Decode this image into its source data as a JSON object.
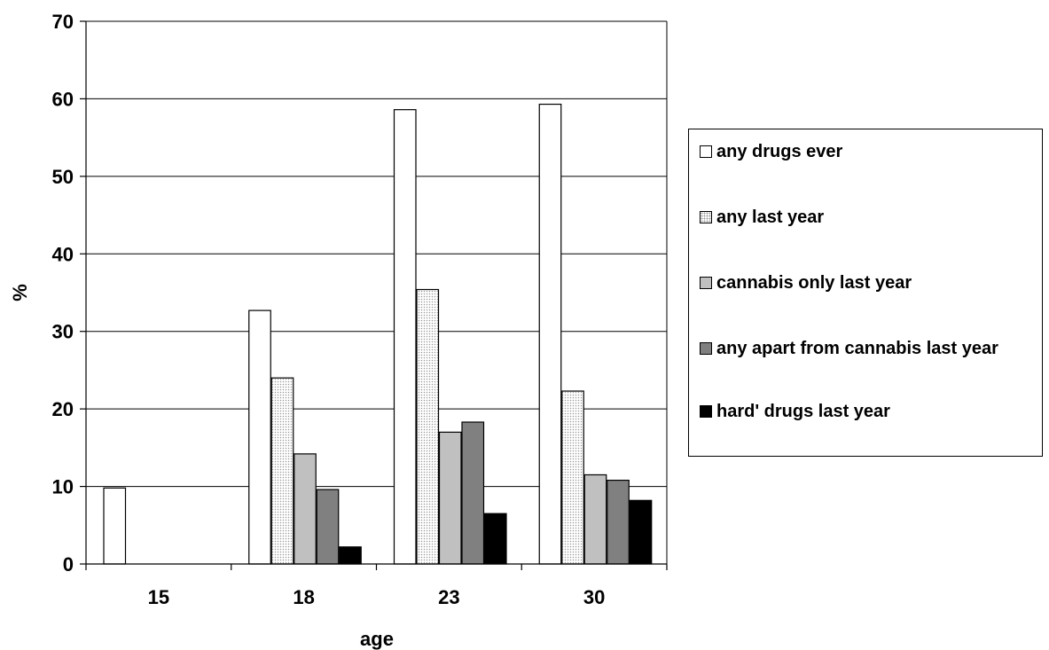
{
  "chart_data": {
    "type": "bar",
    "title": "",
    "xlabel": "age",
    "ylabel": "%",
    "ylim": [
      0,
      70
    ],
    "yticks": [
      0,
      10,
      20,
      30,
      40,
      50,
      60,
      70
    ],
    "grid": true,
    "legend_position": "right",
    "categories": [
      "15",
      "18",
      "23",
      "30"
    ],
    "series": [
      {
        "name": "any drugs ever",
        "values": [
          9.8,
          32.7,
          58.6,
          59.3
        ],
        "color": "#ffffff",
        "pattern": "none"
      },
      {
        "name": "any last year",
        "values": [
          null,
          24.0,
          35.4,
          22.3
        ],
        "color": "#ffffff",
        "pattern": "dots"
      },
      {
        "name": "cannabis only last year",
        "values": [
          null,
          14.2,
          17.0,
          11.5
        ],
        "color": "#c0c0c0",
        "pattern": "none"
      },
      {
        "name": "any apart from cannabis last year",
        "values": [
          null,
          9.6,
          18.3,
          10.8
        ],
        "color": "#808080",
        "pattern": "none"
      },
      {
        "name": "hard' drugs last year",
        "values": [
          null,
          2.2,
          6.5,
          8.2
        ],
        "color": "#000000",
        "pattern": "none"
      }
    ]
  }
}
